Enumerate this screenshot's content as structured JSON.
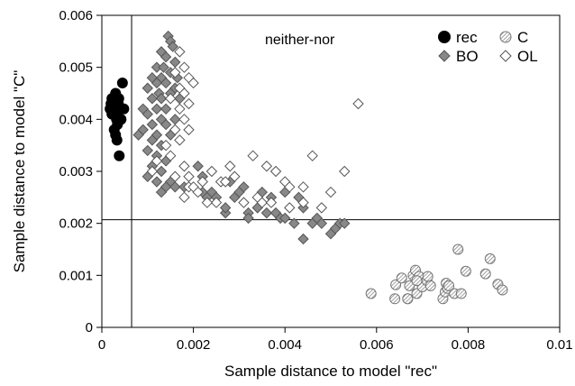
{
  "chart_data": {
    "type": "scatter",
    "xlabel": "Sample distance to model \"rec\"",
    "ylabel": "Sample distance to model \"C\"",
    "xlim": [
      0,
      0.01
    ],
    "ylim": [
      0,
      0.006
    ],
    "x_ticks": [
      "0",
      "0.002",
      "0.004",
      "0.006",
      "0.008",
      "0.01"
    ],
    "y_ticks": [
      "0",
      "0.001",
      "0.002",
      "0.003",
      "0.004",
      "0.005",
      "0.006"
    ],
    "x_tick_values": [
      0,
      0.002,
      0.004,
      0.006,
      0.008,
      0.01
    ],
    "y_tick_values": [
      0,
      0.001,
      0.002,
      0.003,
      0.004,
      0.005,
      0.006
    ],
    "grid": false,
    "legend_position": "top-right",
    "annotation": "neither-nor",
    "thresholds": {
      "x": 0.00065,
      "y": 0.00207
    },
    "series": [
      {
        "name": "rec",
        "marker": "filled-circle",
        "color": "#000000",
        "points": [
          [
            0.0002,
            0.0043
          ],
          [
            0.00025,
            0.0044
          ],
          [
            0.0003,
            0.0042
          ],
          [
            0.00022,
            0.0041
          ],
          [
            0.00035,
            0.0044
          ],
          [
            0.0003,
            0.0045
          ],
          [
            0.00028,
            0.0043
          ],
          [
            0.00032,
            0.004
          ],
          [
            0.0004,
            0.0042
          ],
          [
            0.00018,
            0.0042
          ],
          [
            0.00045,
            0.0047
          ],
          [
            0.00048,
            0.0042
          ],
          [
            0.0003,
            0.0037
          ],
          [
            0.00033,
            0.0036
          ],
          [
            0.00038,
            0.0033
          ],
          [
            0.00028,
            0.0041
          ],
          [
            0.00036,
            0.0043
          ],
          [
            0.00022,
            0.0044
          ],
          [
            0.00031,
            0.0041
          ],
          [
            0.00027,
            0.0038
          ],
          [
            0.00034,
            0.0039
          ],
          [
            0.00042,
            0.004
          ],
          [
            0.00024,
            0.0042
          ],
          [
            0.00037,
            0.0044
          ],
          [
            0.00029,
            0.0044
          ]
        ]
      },
      {
        "name": "C",
        "marker": "hatched-circle",
        "color": "#bbbbbb",
        "points": [
          [
            0.00588,
            0.00065
          ],
          [
            0.0064,
            0.00055
          ],
          [
            0.00642,
            0.00082
          ],
          [
            0.00655,
            0.00095
          ],
          [
            0.00668,
            0.00055
          ],
          [
            0.00672,
            0.0008
          ],
          [
            0.0068,
            0.001
          ],
          [
            0.00685,
            0.0011
          ],
          [
            0.00688,
            0.00065
          ],
          [
            0.00693,
            0.00098
          ],
          [
            0.007,
            0.00078
          ],
          [
            0.0071,
            0.0009
          ],
          [
            0.00712,
            0.00098
          ],
          [
            0.00718,
            0.0008
          ],
          [
            0.00745,
            0.00055
          ],
          [
            0.0075,
            0.00068
          ],
          [
            0.00752,
            0.00085
          ],
          [
            0.00755,
            0.00075
          ],
          [
            0.00758,
            0.0008
          ],
          [
            0.0077,
            0.00065
          ],
          [
            0.00778,
            0.0015
          ],
          [
            0.00785,
            0.00065
          ],
          [
            0.00795,
            0.00108
          ],
          [
            0.00838,
            0.00103
          ],
          [
            0.00848,
            0.00132
          ],
          [
            0.00865,
            0.00083
          ],
          [
            0.00875,
            0.00072
          ],
          [
            0.00668,
            0.00055
          ],
          [
            0.00688,
            0.0009
          ]
        ]
      },
      {
        "name": "BO",
        "marker": "filled-diamond",
        "color": "#888888",
        "points": [
          [
            0.00145,
            0.0056
          ],
          [
            0.0015,
            0.0055
          ],
          [
            0.00155,
            0.0054
          ],
          [
            0.0013,
            0.0053
          ],
          [
            0.0014,
            0.0052
          ],
          [
            0.0016,
            0.0051
          ],
          [
            0.0012,
            0.005
          ],
          [
            0.00135,
            0.005
          ],
          [
            0.0015,
            0.0049
          ],
          [
            0.0011,
            0.0048
          ],
          [
            0.0013,
            0.0048
          ],
          [
            0.00165,
            0.0048
          ],
          [
            0.0012,
            0.0047
          ],
          [
            0.0014,
            0.0047
          ],
          [
            0.0016,
            0.0046
          ],
          [
            0.001,
            0.0046
          ],
          [
            0.00125,
            0.0045
          ],
          [
            0.0015,
            0.0045
          ],
          [
            0.0011,
            0.0044
          ],
          [
            0.0013,
            0.0044
          ],
          [
            0.0017,
            0.0044
          ],
          [
            0.0009,
            0.0042
          ],
          [
            0.0012,
            0.0042
          ],
          [
            0.0014,
            0.0042
          ],
          [
            0.001,
            0.0041
          ],
          [
            0.0013,
            0.004
          ],
          [
            0.0016,
            0.004
          ],
          [
            0.0011,
            0.0039
          ],
          [
            0.0014,
            0.0039
          ],
          [
            0.0009,
            0.0038
          ],
          [
            0.0012,
            0.0037
          ],
          [
            0.0015,
            0.0037
          ],
          [
            0.0008,
            0.0037
          ],
          [
            0.0011,
            0.0036
          ],
          [
            0.0013,
            0.0035
          ],
          [
            0.001,
            0.0034
          ],
          [
            0.0012,
            0.0033
          ],
          [
            0.0014,
            0.0032
          ],
          [
            0.0011,
            0.0031
          ],
          [
            0.0013,
            0.003
          ],
          [
            0.001,
            0.0029
          ],
          [
            0.0012,
            0.0028
          ],
          [
            0.0015,
            0.0028
          ],
          [
            0.0014,
            0.0027
          ],
          [
            0.0016,
            0.0027
          ],
          [
            0.0013,
            0.0026
          ],
          [
            0.0018,
            0.0027
          ],
          [
            0.0021,
            0.0031
          ],
          [
            0.0022,
            0.0029
          ],
          [
            0.0022,
            0.0026
          ],
          [
            0.0023,
            0.0025
          ],
          [
            0.0024,
            0.0026
          ],
          [
            0.0025,
            0.0025
          ],
          [
            0.0027,
            0.0022
          ],
          [
            0.0028,
            0.0028
          ],
          [
            0.0029,
            0.0025
          ],
          [
            0.003,
            0.0026
          ],
          [
            0.0031,
            0.0027
          ],
          [
            0.0032,
            0.0022
          ],
          [
            0.0034,
            0.0023
          ],
          [
            0.0035,
            0.0026
          ],
          [
            0.0036,
            0.0022
          ],
          [
            0.0037,
            0.0025
          ],
          [
            0.0038,
            0.0022
          ],
          [
            0.0039,
            0.0021
          ],
          [
            0.004,
            0.0026
          ],
          [
            0.004,
            0.0021
          ],
          [
            0.0042,
            0.002
          ],
          [
            0.0043,
            0.0025
          ],
          [
            0.0044,
            0.0017
          ],
          [
            0.0046,
            0.002
          ],
          [
            0.0047,
            0.0021
          ],
          [
            0.0048,
            0.002
          ],
          [
            0.005,
            0.0018
          ],
          [
            0.0051,
            0.0019
          ],
          [
            0.0052,
            0.002
          ],
          [
            0.0053,
            0.002
          ],
          [
            0.0044,
            0.0023
          ],
          [
            0.0032,
            0.0021
          ],
          [
            0.0027,
            0.0023
          ]
        ]
      },
      {
        "name": "OL",
        "marker": "open-diamond",
        "color": "#ffffff",
        "points": [
          [
            0.0017,
            0.0053
          ],
          [
            0.0018,
            0.005
          ],
          [
            0.0016,
            0.0049
          ],
          [
            0.0019,
            0.0048
          ],
          [
            0.002,
            0.0047
          ],
          [
            0.0017,
            0.0046
          ],
          [
            0.0018,
            0.0045
          ],
          [
            0.0015,
            0.0044
          ],
          [
            0.0019,
            0.0043
          ],
          [
            0.0017,
            0.0042
          ],
          [
            0.0018,
            0.004
          ],
          [
            0.0019,
            0.0038
          ],
          [
            0.0016,
            0.0038
          ],
          [
            0.0017,
            0.0036
          ],
          [
            0.0014,
            0.0035
          ],
          [
            0.0015,
            0.0033
          ],
          [
            0.0012,
            0.0032
          ],
          [
            0.0011,
            0.003
          ],
          [
            0.0016,
            0.0029
          ],
          [
            0.0018,
            0.0031
          ],
          [
            0.0019,
            0.0029
          ],
          [
            0.0019,
            0.0027
          ],
          [
            0.002,
            0.0027
          ],
          [
            0.0021,
            0.0026
          ],
          [
            0.0018,
            0.0025
          ],
          [
            0.0022,
            0.0028
          ],
          [
            0.0024,
            0.003
          ],
          [
            0.0025,
            0.0024
          ],
          [
            0.0026,
            0.0028
          ],
          [
            0.0028,
            0.0031
          ],
          [
            0.0029,
            0.0029
          ],
          [
            0.0033,
            0.0033
          ],
          [
            0.0034,
            0.0025
          ],
          [
            0.0035,
            0.0024
          ],
          [
            0.0036,
            0.0031
          ],
          [
            0.0038,
            0.003
          ],
          [
            0.004,
            0.0028
          ],
          [
            0.0041,
            0.0027
          ],
          [
            0.0041,
            0.0023
          ],
          [
            0.0044,
            0.0027
          ],
          [
            0.0046,
            0.0033
          ],
          [
            0.005,
            0.0026
          ],
          [
            0.0053,
            0.003
          ],
          [
            0.0056,
            0.0043
          ],
          [
            0.0023,
            0.0024
          ],
          [
            0.0027,
            0.0028
          ],
          [
            0.0031,
            0.0024
          ],
          [
            0.0037,
            0.0024
          ],
          [
            0.0044,
            0.0024
          ],
          [
            0.0048,
            0.0023
          ]
        ]
      }
    ]
  }
}
